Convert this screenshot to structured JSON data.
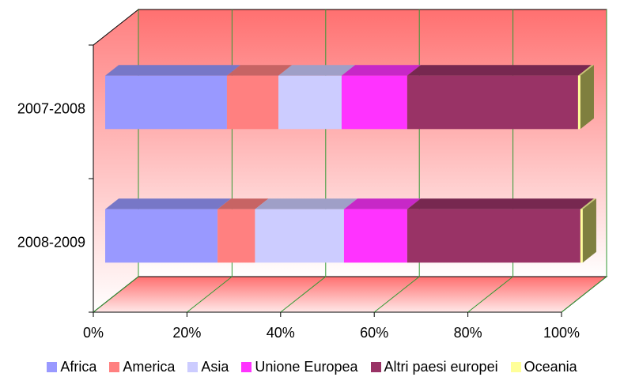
{
  "chart_data": {
    "type": "bar",
    "orientation": "horizontal",
    "stacked": "100%",
    "style": "3d",
    "categories": [
      "2008-2009",
      "2007-2008"
    ],
    "series": [
      {
        "name": "Africa",
        "color": "#9999FF",
        "values": [
          24,
          26
        ]
      },
      {
        "name": "America",
        "color": "#FF8080",
        "values": [
          8,
          11
        ]
      },
      {
        "name": "Asia",
        "color": "#CCCCFF",
        "values": [
          19,
          13.5
        ]
      },
      {
        "name": "Unione Europea",
        "color": "#FF33FF",
        "values": [
          13.5,
          14
        ]
      },
      {
        "name": "Altri paesi europei",
        "color": "#993366",
        "values": [
          37,
          36.5
        ]
      },
      {
        "name": "Oceania",
        "color": "#FFFF99",
        "values": [
          0.5,
          0.5
        ]
      }
    ],
    "xlim": [
      0,
      100
    ],
    "x_ticks": [
      "0%",
      "20%",
      "40%",
      "60%",
      "80%",
      "100%"
    ],
    "grid": true,
    "legend_position": "bottom",
    "wall_color": "#FF8080",
    "gridline_color": "#339933",
    "xlabel": "",
    "ylabel": ""
  }
}
